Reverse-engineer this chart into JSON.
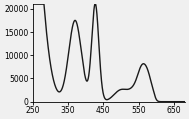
{
  "xlim": [
    250,
    680
  ],
  "ylim": [
    0,
    21000
  ],
  "xticks": [
    250,
    350,
    450,
    550,
    650
  ],
  "yticks": [
    0,
    5000,
    10000,
    15000,
    20000
  ],
  "ytick_labels": [
    "0",
    "5000",
    "10000",
    "15000",
    "20000"
  ],
  "line_color": "#1a1a1a",
  "background_color": "#f0f0f0",
  "linewidth": 1.0
}
